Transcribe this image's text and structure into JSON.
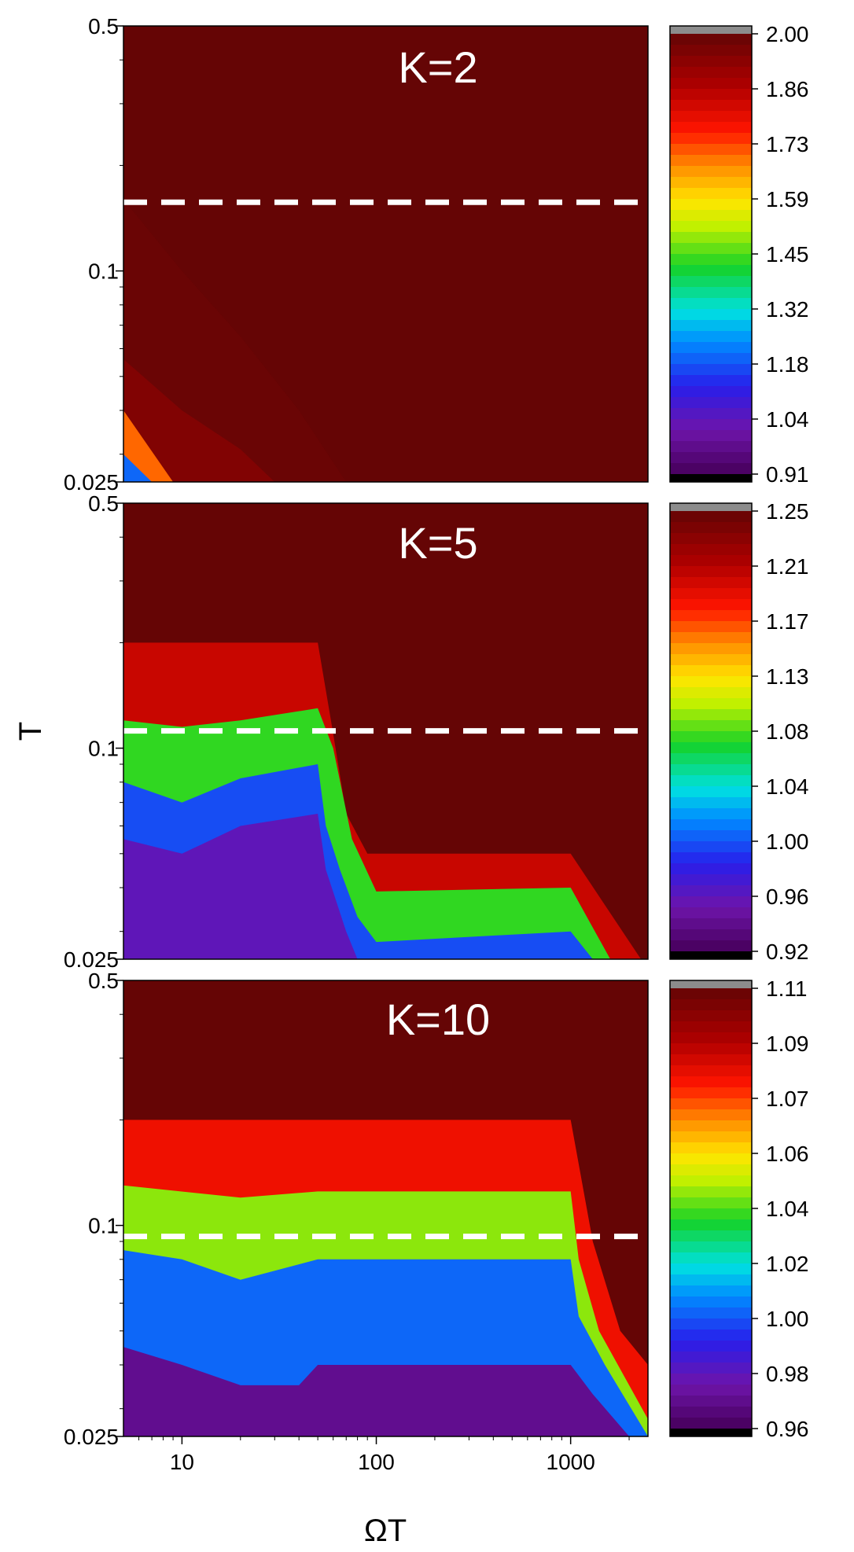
{
  "chart_data": [
    {
      "type": "heatmap",
      "panel_label": "K=2",
      "xlabel": "ΩT",
      "ylabel": "",
      "xscale": "log",
      "yscale": "log",
      "xlim": [
        5,
        2500
      ],
      "ylim": [
        0.025,
        0.5
      ],
      "x_tick_labels": [],
      "y_tick_labels": [
        {
          "value": 0.5,
          "label": "0.5"
        },
        {
          "value": 0.1,
          "label": "0.1"
        },
        {
          "value": 0.025,
          "label": "0.025"
        }
      ],
      "dashed_line_T": 0.157,
      "colorbar": {
        "min": 0.91,
        "max": 2.0,
        "tick_labels": [
          "2.00",
          "1.86",
          "1.73",
          "1.59",
          "1.45",
          "1.32",
          "1.18",
          "1.04",
          "0.91"
        ]
      },
      "contour_levels": [
        {
          "value": 1.99,
          "T_boundary_at_OmegaT": [
            [
              5,
              0.16
            ],
            [
              10,
              0.1
            ],
            [
              20,
              0.065
            ],
            [
              40,
              0.04
            ],
            [
              70,
              0.025
            ]
          ]
        },
        {
          "value": 1.95,
          "T_boundary_at_OmegaT": [
            [
              5,
              0.056
            ],
            [
              10,
              0.04
            ],
            [
              20,
              0.031
            ],
            [
              30,
              0.025
            ]
          ]
        },
        {
          "value": 1.7,
          "T_boundary_at_OmegaT": [
            [
              5,
              0.04
            ],
            [
              9,
              0.025
            ]
          ]
        },
        {
          "value": 1.2,
          "T_boundary_at_OmegaT": [
            [
              5,
              0.03
            ],
            [
              7,
              0.025
            ]
          ]
        }
      ]
    },
    {
      "type": "heatmap",
      "panel_label": "K=5",
      "xlabel": "ΩT",
      "ylabel": "T",
      "xscale": "log",
      "yscale": "log",
      "xlim": [
        5,
        2500
      ],
      "ylim": [
        0.025,
        0.5
      ],
      "x_tick_labels": [],
      "y_tick_labels": [
        {
          "value": 0.5,
          "label": "0.5"
        },
        {
          "value": 0.1,
          "label": "0.1"
        },
        {
          "value": 0.025,
          "label": "0.025"
        }
      ],
      "dashed_line_T": 0.112,
      "colorbar": {
        "min": 0.92,
        "max": 1.25,
        "tick_labels": [
          "1.25",
          "1.21",
          "1.17",
          "1.13",
          "1.08",
          "1.04",
          "1.00",
          "0.96",
          "0.92"
        ]
      },
      "contour_levels": [
        {
          "value": 1.2,
          "T_boundary_at_OmegaT": [
            [
              5,
              0.2
            ],
            [
              50,
              0.2
            ],
            [
              60,
              0.11
            ],
            [
              70,
              0.065
            ],
            [
              90,
              0.05
            ],
            [
              1000,
              0.05
            ],
            [
              2300,
              0.025
            ]
          ]
        },
        {
          "value": 1.08,
          "T_boundary_at_OmegaT": [
            [
              5,
              0.12
            ],
            [
              10,
              0.115
            ],
            [
              20,
              0.12
            ],
            [
              50,
              0.13
            ],
            [
              60,
              0.1
            ],
            [
              75,
              0.055
            ],
            [
              100,
              0.039
            ],
            [
              1000,
              0.04
            ],
            [
              1600,
              0.025
            ]
          ]
        },
        {
          "value": 1.0,
          "T_boundary_at_OmegaT": [
            [
              5,
              0.08
            ],
            [
              10,
              0.07
            ],
            [
              20,
              0.082
            ],
            [
              50,
              0.09
            ],
            [
              55,
              0.06
            ],
            [
              65,
              0.045
            ],
            [
              80,
              0.033
            ],
            [
              100,
              0.028
            ],
            [
              1000,
              0.03
            ],
            [
              1300,
              0.025
            ]
          ]
        },
        {
          "value": 0.96,
          "T_boundary_at_OmegaT": [
            [
              5,
              0.055
            ],
            [
              10,
              0.05
            ],
            [
              20,
              0.06
            ],
            [
              50,
              0.065
            ],
            [
              55,
              0.045
            ],
            [
              70,
              0.03
            ],
            [
              80,
              0.025
            ]
          ]
        }
      ]
    },
    {
      "type": "heatmap",
      "panel_label": "K=10",
      "xlabel": "ΩT",
      "ylabel": "",
      "xscale": "log",
      "yscale": "log",
      "xlim": [
        5,
        2500
      ],
      "ylim": [
        0.025,
        0.5
      ],
      "x_tick_labels": [
        {
          "value": 10,
          "label": "10"
        },
        {
          "value": 100,
          "label": "100"
        },
        {
          "value": 1000,
          "label": "1000"
        }
      ],
      "y_tick_labels": [
        {
          "value": 0.5,
          "label": "0.5"
        },
        {
          "value": 0.1,
          "label": "0.1"
        },
        {
          "value": 0.025,
          "label": "0.025"
        }
      ],
      "dashed_line_T": 0.093,
      "colorbar": {
        "min": 0.96,
        "max": 1.11,
        "tick_labels": [
          "1.11",
          "1.09",
          "1.07",
          "1.06",
          "1.04",
          "1.02",
          "1.00",
          "0.98",
          "0.96"
        ]
      },
      "contour_levels": [
        {
          "value": 1.08,
          "T_boundary_at_OmegaT": [
            [
              5,
              0.2
            ],
            [
              1000,
              0.2
            ],
            [
              1300,
              0.09
            ],
            [
              1800,
              0.05
            ],
            [
              2500,
              0.04
            ]
          ]
        },
        {
          "value": 1.04,
          "T_boundary_at_OmegaT": [
            [
              5,
              0.13
            ],
            [
              20,
              0.12
            ],
            [
              50,
              0.125
            ],
            [
              1000,
              0.125
            ],
            [
              1100,
              0.08
            ],
            [
              1400,
              0.05
            ],
            [
              2500,
              0.028
            ]
          ]
        },
        {
          "value": 1.0,
          "T_boundary_at_OmegaT": [
            [
              5,
              0.085
            ],
            [
              10,
              0.08
            ],
            [
              20,
              0.07
            ],
            [
              50,
              0.08
            ],
            [
              1000,
              0.08
            ],
            [
              1100,
              0.055
            ],
            [
              1500,
              0.04
            ],
            [
              2500,
              0.025
            ]
          ]
        },
        {
          "value": 0.97,
          "T_boundary_at_OmegaT": [
            [
              5,
              0.045
            ],
            [
              10,
              0.04
            ],
            [
              20,
              0.035
            ],
            [
              40,
              0.035
            ],
            [
              50,
              0.04
            ],
            [
              1000,
              0.04
            ],
            [
              1300,
              0.033
            ],
            [
              2000,
              0.025
            ]
          ]
        }
      ]
    }
  ]
}
